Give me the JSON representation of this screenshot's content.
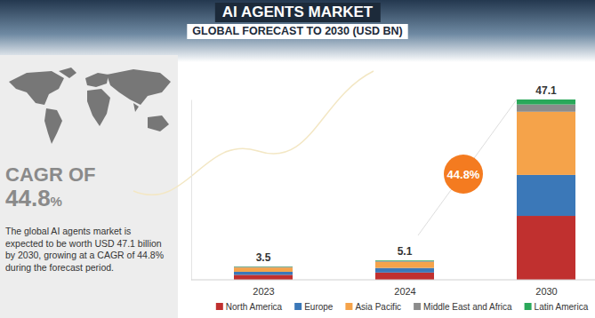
{
  "chart_data": {
    "type": "bar",
    "title": "AI AGENTS MARKET",
    "subtitle": "GLOBAL FORECAST TO 2030 (USD BN)",
    "categories": [
      "2023",
      "2024",
      "2030"
    ],
    "series": [
      {
        "name": "North America",
        "color": "#c0302f",
        "values": [
          1.3,
          1.9,
          16.7
        ]
      },
      {
        "name": "Europe",
        "color": "#3b78b8",
        "values": [
          0.8,
          1.2,
          10.7
        ]
      },
      {
        "name": "Asia Pacific",
        "color": "#f5a34a",
        "values": [
          1.1,
          1.6,
          16.5
        ]
      },
      {
        "name": "Middle East and Africa",
        "color": "#8c8c8c",
        "values": [
          0.2,
          0.25,
          1.9
        ]
      },
      {
        "name": "Latin America",
        "color": "#2aa85a",
        "values": [
          0.1,
          0.15,
          1.3
        ]
      }
    ],
    "totals": [
      3.5,
      5.1,
      47.1
    ],
    "stacked": true,
    "legend": "bottom",
    "grid": false,
    "tick_labels": "x",
    "ylim": [
      0,
      47.1
    ],
    "callout": "44.8%",
    "side_panel": {
      "heading": "CAGR OF",
      "cagr": "44.8%",
      "text": "The global AI agents market is expected to be worth USD 47.1 billion by 2030, growing at a CAGR of 44.8% during the forecast period."
    }
  }
}
